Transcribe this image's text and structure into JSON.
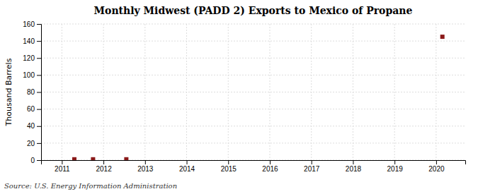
{
  "chart_data": {
    "type": "scatter",
    "title": "Monthly Midwest (PADD 2) Exports to Mexico of Propane",
    "ylabel": "Thousand Barrels",
    "source": "Source: U.S. Energy Information Administration",
    "x": [
      2011.3,
      2011.75,
      2012.55,
      2020.15
    ],
    "values": [
      1.0,
      1.0,
      1.0,
      145
    ],
    "color": "#8b1a1a",
    "marker": "square",
    "xlim": [
      2010.5,
      2020.7
    ],
    "xticks": [
      2011,
      2012,
      2013,
      2014,
      2015,
      2016,
      2017,
      2018,
      2019,
      2020
    ],
    "ylim": [
      0,
      160
    ],
    "yticks": [
      0,
      20,
      40,
      60,
      80,
      100,
      120,
      140,
      160
    ],
    "grid": true
  }
}
